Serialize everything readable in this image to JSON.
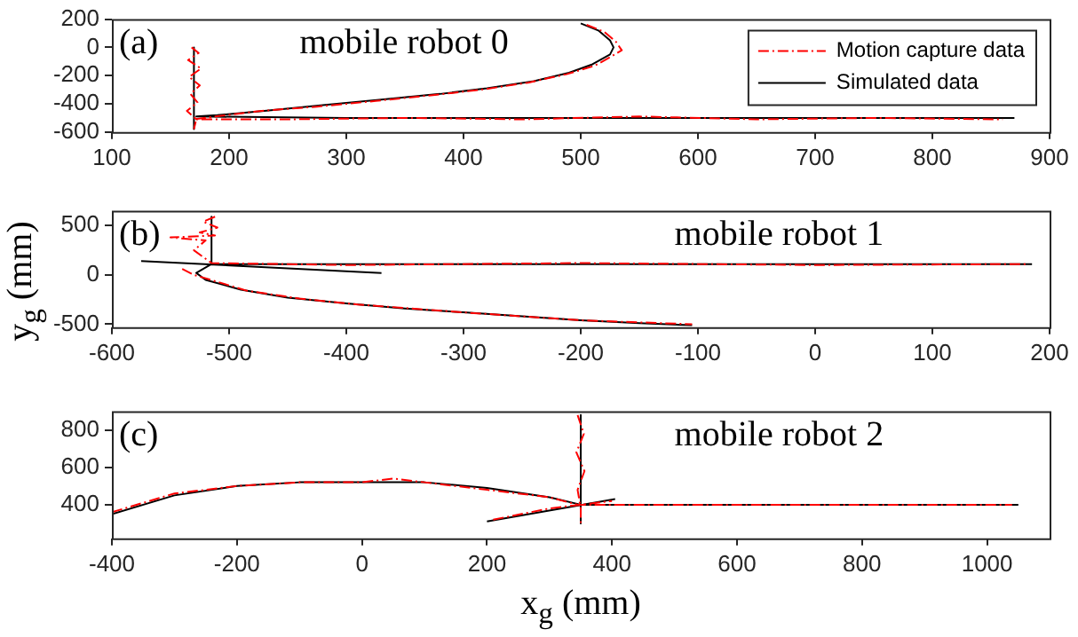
{
  "chart_data": [
    {
      "type": "line",
      "annotations": [
        "(a)",
        "mobile robot 0"
      ],
      "xlim": [
        100,
        900
      ],
      "xticks": [
        100,
        200,
        300,
        400,
        500,
        600,
        700,
        800,
        900
      ],
      "ylim": [
        -600,
        200
      ],
      "yticks": [
        -600,
        -400,
        -200,
        0,
        200
      ],
      "grid": false,
      "legend": "top right",
      "marker": "none",
      "series": [
        {
          "name": "Motion capture data",
          "color": "#ff0000",
          "line_style": "dashed",
          "x": [
            168,
            174,
            165,
            176,
            166,
            175,
            167,
            173,
            164,
            172,
            170,
            null,
            505,
            520,
            530,
            535,
            525,
            512,
            488,
            455,
            415,
            372,
            325,
            275,
            228,
            188,
            170,
            250,
            350,
            450,
            550,
            650,
            750,
            860
          ],
          "values": [
            0,
            -40,
            -90,
            -150,
            -210,
            -270,
            -330,
            -390,
            -450,
            -510,
            -580,
            null,
            160,
            110,
            40,
            -20,
            -70,
            -130,
            -190,
            -250,
            -300,
            -340,
            -380,
            -420,
            -450,
            -490,
            -510,
            -510,
            -500,
            -510,
            -490,
            -510,
            -500,
            -510
          ]
        },
        {
          "name": "Simulated data",
          "color": "#000000",
          "line_style": "solid",
          "x": [
            170,
            170,
            null,
            500,
            515,
            525,
            528,
            525,
            510,
            490,
            460,
            420,
            380,
            330,
            280,
            230,
            190,
            172,
            300,
            500,
            700,
            870
          ],
          "values": [
            0,
            -580,
            null,
            170,
            120,
            50,
            0,
            -50,
            -120,
            -180,
            -240,
            -290,
            -330,
            -370,
            -410,
            -450,
            -480,
            -490,
            -500,
            -500,
            -500,
            -500
          ]
        }
      ]
    },
    {
      "type": "line",
      "annotations": [
        "(b)",
        "mobile robot 1"
      ],
      "ylabel": "y$_{g}$ (mm)",
      "xlim": [
        -600,
        200
      ],
      "xticks": [
        -600,
        -500,
        -400,
        -300,
        -200,
        -100,
        0,
        100,
        200
      ],
      "ylim": [
        -530,
        650
      ],
      "yticks": [
        -500,
        0,
        500
      ],
      "grid": false,
      "marker": "none",
      "series": [
        {
          "color": "#ff0000",
          "line_style": "dashed",
          "x": [
            -512,
            -522,
            -510,
            -525,
            -512,
            -550,
            -520,
            -530,
            -515,
            -400,
            -200,
            0,
            180,
            null,
            -540,
            -530,
            -510,
            -485,
            -440,
            -390,
            -300,
            -200,
            -105
          ],
          "values": [
            590,
            540,
            480,
            430,
            400,
            380,
            350,
            250,
            120,
            100,
            120,
            100,
            110,
            null,
            60,
            0,
            -70,
            -160,
            -240,
            -300,
            -380,
            -460,
            -500
          ]
        },
        {
          "color": "#000000",
          "line_style": "solid",
          "x": [
            -515,
            -515,
            -300,
            0,
            185,
            null,
            -575,
            -370,
            null,
            -515,
            -528,
            -520,
            -490,
            -450,
            -400,
            -350,
            -300,
            -250,
            -200,
            -150,
            -105
          ],
          "values": [
            590,
            110,
            110,
            110,
            110,
            null,
            140,
            20,
            null,
            110,
            20,
            -50,
            -150,
            -230,
            -290,
            -340,
            -380,
            -420,
            -460,
            -490,
            -510
          ]
        }
      ]
    },
    {
      "type": "line",
      "annotations": [
        "(c)",
        "mobile robot 2"
      ],
      "xlabel": "x$_{g}$ (mm)",
      "xlim": [
        -400,
        1100
      ],
      "xticks": [
        -400,
        -200,
        0,
        200,
        400,
        600,
        800,
        1000
      ],
      "ylim": [
        220,
        900
      ],
      "yticks": [
        400,
        600,
        800
      ],
      "grid": false,
      "marker": "none",
      "series": [
        {
          "color": "#ff0000",
          "line_style": "dashed",
          "x": [
            -400,
            -300,
            -200,
            -100,
            0,
            50,
            100,
            200,
            300,
            345,
            500,
            700,
            900,
            1040,
            null,
            345,
            355,
            343,
            356,
            345,
            350,
            350,
            null,
            210,
            300,
            400
          ],
          "values": [
            360,
            460,
            500,
            520,
            520,
            540,
            520,
            480,
            440,
            400,
            400,
            400,
            400,
            400,
            null,
            880,
            780,
            680,
            580,
            480,
            380,
            290,
            null,
            320,
            380,
            420
          ]
        },
        {
          "color": "#000000",
          "line_style": "solid",
          "x": [
            -400,
            -300,
            -200,
            -100,
            0,
            100,
            200,
            300,
            350,
            600,
            850,
            1050,
            null,
            350,
            350,
            null,
            200,
            405
          ],
          "values": [
            350,
            450,
            500,
            520,
            520,
            520,
            490,
            440,
            400,
            400,
            400,
            400,
            null,
            880,
            300,
            null,
            310,
            430
          ]
        }
      ]
    }
  ]
}
